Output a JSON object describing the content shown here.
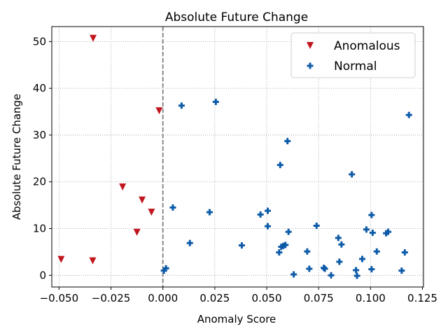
{
  "chart_data": {
    "type": "scatter",
    "title": "Absolute Future Change",
    "xlabel": "Anomaly Score",
    "ylabel": "Absolute Future Change",
    "xlim": [
      -0.0535,
      0.1255
    ],
    "ylim": [
      -2.5,
      53.2
    ],
    "x_ticks": [
      -0.05,
      -0.025,
      0.0,
      0.025,
      0.05,
      0.075,
      0.1,
      0.125
    ],
    "x_tick_labels": [
      "−0.050",
      "−0.025",
      "0.000",
      "0.025",
      "0.050",
      "0.075",
      "0.100",
      "0.125"
    ],
    "y_ticks": [
      0,
      10,
      20,
      30,
      40,
      50
    ],
    "y_tick_labels": [
      "0",
      "10",
      "20",
      "30",
      "40",
      "50"
    ],
    "grid": true,
    "legend_position": "top-right",
    "vline": {
      "x": 0.0,
      "color": "#808080",
      "style": "dashed"
    },
    "series": [
      {
        "name": "Anomalous",
        "marker": "triangle-down",
        "color": "#c0161d",
        "points": [
          [
            -0.0336,
            50.7
          ],
          [
            -0.0018,
            35.2
          ],
          [
            -0.0194,
            18.9
          ],
          [
            -0.01,
            16.1
          ],
          [
            -0.0055,
            13.5
          ],
          [
            -0.0125,
            9.2
          ],
          [
            -0.049,
            3.4
          ],
          [
            -0.0338,
            3.1
          ]
        ]
      },
      {
        "name": "Normal",
        "marker": "plus",
        "color": "#0d5ba8",
        "points": [
          [
            0.009,
            36.3
          ],
          [
            0.0255,
            37.1
          ],
          [
            0.1185,
            34.3
          ],
          [
            0.06,
            28.7
          ],
          [
            0.0565,
            23.6
          ],
          [
            0.091,
            21.6
          ],
          [
            0.0048,
            14.5
          ],
          [
            0.0225,
            13.5
          ],
          [
            0.0505,
            13.8
          ],
          [
            0.047,
            13.0
          ],
          [
            0.1005,
            12.9
          ],
          [
            0.074,
            10.6
          ],
          [
            0.0505,
            10.5
          ],
          [
            0.0605,
            9.3
          ],
          [
            0.098,
            9.8
          ],
          [
            0.101,
            9.1
          ],
          [
            0.1075,
            9.0
          ],
          [
            0.1085,
            9.3
          ],
          [
            0.0845,
            8.0
          ],
          [
            0.013,
            6.9
          ],
          [
            0.038,
            6.4
          ],
          [
            0.058,
            6.3
          ],
          [
            0.059,
            6.5
          ],
          [
            0.057,
            6.1
          ],
          [
            0.086,
            6.6
          ],
          [
            0.056,
            4.9
          ],
          [
            0.0695,
            5.1
          ],
          [
            0.103,
            5.1
          ],
          [
            0.1165,
            4.9
          ],
          [
            0.096,
            3.5
          ],
          [
            0.085,
            2.9
          ],
          [
            0.0705,
            1.4
          ],
          [
            0.0775,
            1.6
          ],
          [
            0.078,
            1.4
          ],
          [
            0.093,
            1.1
          ],
          [
            0.1005,
            1.3
          ],
          [
            0.115,
            1.0
          ],
          [
            0.0015,
            1.5
          ],
          [
            0.0005,
            1.0
          ],
          [
            0.063,
            0.2
          ],
          [
            0.081,
            0.0
          ],
          [
            0.0935,
            -0.1
          ]
        ]
      }
    ]
  }
}
